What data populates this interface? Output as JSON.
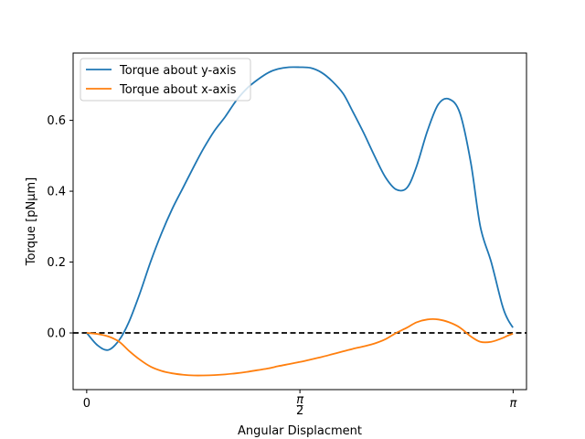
{
  "chart_data": {
    "type": "line",
    "title": "",
    "xlabel": "Angular Displacment",
    "ylabel": "Torque [pNμm]",
    "xlim": [
      -0.1,
      3.24
    ],
    "ylim": [
      -0.16,
      0.79
    ],
    "x_ticks": [
      {
        "value": 0,
        "label": "0"
      },
      {
        "value": 1.5708,
        "label": "π/2"
      },
      {
        "value": 3.1416,
        "label": "π"
      }
    ],
    "y_ticks": [
      {
        "value": 0.0,
        "label": "0.0"
      },
      {
        "value": 0.2,
        "label": "0.2"
      },
      {
        "value": 0.4,
        "label": "0.4"
      },
      {
        "value": 0.6,
        "label": "0.6"
      }
    ],
    "grid": false,
    "legend": "top-left",
    "reference_line": {
      "y": 0,
      "style": "dashed",
      "color": "#000000"
    },
    "series": [
      {
        "name": "Torque about y-axis",
        "color": "#1f77b4",
        "x": [
          0,
          0.08,
          0.16,
          0.24,
          0.31,
          0.39,
          0.47,
          0.55,
          0.63,
          0.71,
          0.79,
          0.86,
          0.94,
          1.02,
          1.1,
          1.18,
          1.26,
          1.34,
          1.41,
          1.49,
          1.57,
          1.65,
          1.73,
          1.81,
          1.89,
          1.96,
          2.04,
          2.12,
          2.2,
          2.28,
          2.36,
          2.43,
          2.51,
          2.59,
          2.67,
          2.75,
          2.83,
          2.9,
          2.98,
          3.06,
          3.1,
          3.14
        ],
        "y": [
          0.0,
          -0.035,
          -0.048,
          -0.02,
          0.03,
          0.11,
          0.2,
          0.28,
          0.35,
          0.41,
          0.47,
          0.52,
          0.57,
          0.61,
          0.655,
          0.69,
          0.715,
          0.735,
          0.745,
          0.75,
          0.75,
          0.748,
          0.735,
          0.71,
          0.675,
          0.625,
          0.565,
          0.5,
          0.44,
          0.405,
          0.41,
          0.47,
          0.57,
          0.645,
          0.66,
          0.62,
          0.48,
          0.3,
          0.2,
          0.08,
          0.04,
          0.015
        ]
      },
      {
        "name": "Torque about x-axis",
        "color": "#ff7f0e",
        "x": [
          0,
          0.08,
          0.16,
          0.24,
          0.31,
          0.39,
          0.47,
          0.55,
          0.63,
          0.71,
          0.79,
          0.86,
          0.94,
          1.02,
          1.1,
          1.18,
          1.26,
          1.34,
          1.41,
          1.49,
          1.57,
          1.65,
          1.73,
          1.81,
          1.89,
          1.96,
          2.04,
          2.12,
          2.2,
          2.28,
          2.36,
          2.43,
          2.51,
          2.59,
          2.67,
          2.75,
          2.83,
          2.9,
          2.98,
          3.06,
          3.1,
          3.14
        ],
        "y": [
          0.0,
          -0.003,
          -0.01,
          -0.025,
          -0.05,
          -0.075,
          -0.095,
          -0.107,
          -0.114,
          -0.118,
          -0.12,
          -0.12,
          -0.119,
          -0.117,
          -0.114,
          -0.11,
          -0.105,
          -0.1,
          -0.094,
          -0.088,
          -0.082,
          -0.075,
          -0.068,
          -0.06,
          -0.052,
          -0.045,
          -0.038,
          -0.03,
          -0.018,
          0.0,
          0.015,
          0.03,
          0.038,
          0.038,
          0.03,
          0.015,
          -0.01,
          -0.025,
          -0.025,
          -0.015,
          -0.008,
          -0.002
        ]
      }
    ]
  }
}
